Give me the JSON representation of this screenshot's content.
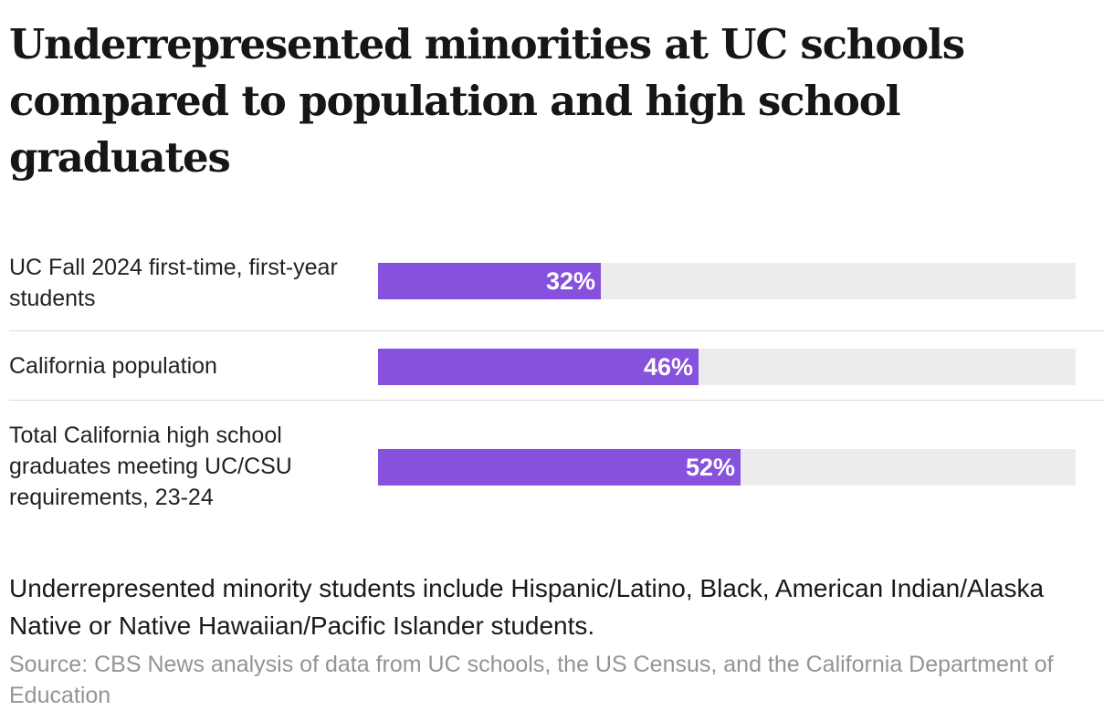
{
  "title": "Underrepresented minorities at UC schools compared to population and high school graduates",
  "colors": {
    "bar": "#8652dd",
    "track": "#ececec"
  },
  "chart_data": {
    "type": "bar",
    "orientation": "horizontal",
    "categories": [
      "UC Fall 2024 first-time, first-year students",
      "California population",
      "Total California high school graduates meeting UC/CSU requirements, 23-24"
    ],
    "values": [
      32,
      46,
      52
    ],
    "value_labels": [
      "32%",
      "46%",
      "52%"
    ],
    "xlim": [
      0,
      100
    ],
    "grid": false
  },
  "note": "Underrepresented minority students include Hispanic/Latino, Black, American Indian/Alaska Native or Native Hawaiian/Pacific Islander students.",
  "source": "Source: CBS News analysis of data from UC schools, the US Census, and the California Department of Education"
}
